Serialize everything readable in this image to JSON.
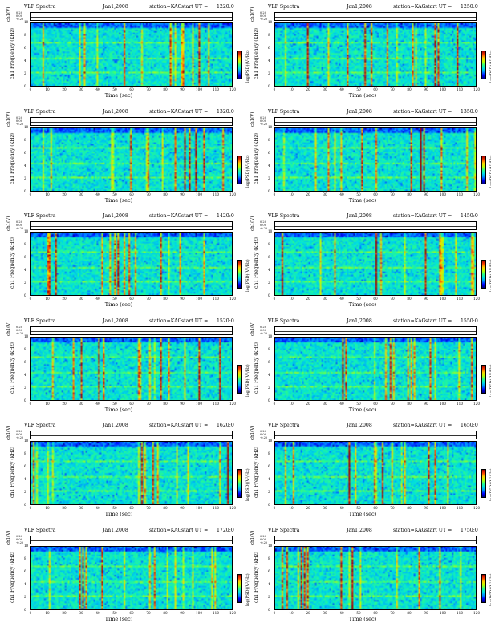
{
  "header": {
    "title": "VLF Spectra",
    "date": "Jan1,2008",
    "station": "station=KAG",
    "start_label": "start  UT ="
  },
  "axes": {
    "ts_label": "ch1(V)",
    "ts_ticks": [
      "0.20",
      "0.00",
      "-0.20"
    ],
    "ylabel": "ch1 Frequency (kHz)",
    "yticks": [
      "10",
      "8",
      "6",
      "4",
      "2",
      "0"
    ],
    "xlabel": "Time (sec)",
    "xticks": [
      "0",
      "10",
      "20",
      "30",
      "40",
      "50",
      "60",
      "70",
      "80",
      "90",
      "100",
      "110",
      "120"
    ],
    "colorbar_label": "log(PSD)(V²/Hz)"
  },
  "colors": {
    "colormap": [
      "#00007f",
      "#0000ff",
      "#0090ff",
      "#00e0e0",
      "#30ff80",
      "#c0ff00",
      "#ffd000",
      "#ff4000",
      "#9f0000"
    ]
  },
  "chart_data": [
    {
      "type": "heatmap",
      "start_ut": "1220:0",
      "x_range": [
        0,
        120
      ],
      "y_range": [
        0,
        10
      ]
    },
    {
      "type": "heatmap",
      "start_ut": "1250:0",
      "x_range": [
        0,
        120
      ],
      "y_range": [
        0,
        10
      ]
    },
    {
      "type": "heatmap",
      "start_ut": "1320:0",
      "x_range": [
        0,
        120
      ],
      "y_range": [
        0,
        10
      ]
    },
    {
      "type": "heatmap",
      "start_ut": "1350:0",
      "x_range": [
        0,
        120
      ],
      "y_range": [
        0,
        10
      ]
    },
    {
      "type": "heatmap",
      "start_ut": "1420:0",
      "x_range": [
        0,
        120
      ],
      "y_range": [
        0,
        10
      ]
    },
    {
      "type": "heatmap",
      "start_ut": "1450:0",
      "x_range": [
        0,
        120
      ],
      "y_range": [
        0,
        10
      ]
    },
    {
      "type": "heatmap",
      "start_ut": "1520:0",
      "x_range": [
        0,
        120
      ],
      "y_range": [
        0,
        10
      ]
    },
    {
      "type": "heatmap",
      "start_ut": "1550:0",
      "x_range": [
        0,
        120
      ],
      "y_range": [
        0,
        10
      ]
    },
    {
      "type": "heatmap",
      "start_ut": "1620:0",
      "x_range": [
        0,
        120
      ],
      "y_range": [
        0,
        10
      ]
    },
    {
      "type": "heatmap",
      "start_ut": "1650:0",
      "x_range": [
        0,
        120
      ],
      "y_range": [
        0,
        10
      ]
    },
    {
      "type": "heatmap",
      "start_ut": "1720:0",
      "x_range": [
        0,
        120
      ],
      "y_range": [
        0,
        10
      ]
    },
    {
      "type": "heatmap",
      "start_ut": "1750:0",
      "x_range": [
        0,
        120
      ],
      "y_range": [
        0,
        10
      ]
    }
  ]
}
